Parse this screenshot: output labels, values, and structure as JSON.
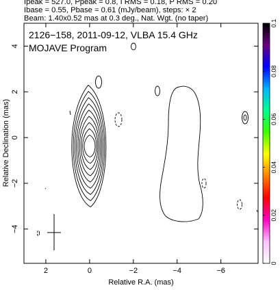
{
  "header": {
    "line1": "Ipeak = 527.0, Ppeak = 0.8, I RMS = 0.18, P RMS = 0.20",
    "line2": "Ibase = 0.55, Pbase = 0.61 (mJy/beam), steps: × 2",
    "line3": "Beam: 1.40x0.52 mas at 0.3 deg., Nat. Wgt. (no taper)"
  },
  "panel": {
    "title": "2126−158, 2011-09-12, VLBA 15.4 GHz",
    "program": "MOJAVE Program"
  },
  "chart_data": {
    "type": "contour",
    "xlabel": "Relative R.A. (mas)",
    "ylabel": "Relative Declination (mas)",
    "xlim": [
      3.0,
      -7.7
    ],
    "ylim": [
      -5.5,
      5.0
    ],
    "x_ticks": [
      2,
      0,
      -2,
      -4,
      -6
    ],
    "x_tick_labels": [
      "2",
      "0",
      "−2",
      "−4",
      "−6"
    ],
    "y_ticks": [
      4,
      2,
      0,
      -2,
      -4
    ],
    "y_tick_labels": [
      "4",
      "2",
      "0",
      "−2",
      "−4"
    ],
    "core": {
      "x": 0.0,
      "y": -0.4,
      "contour_levels": 9
    },
    "colorbar": {
      "range": [
        0,
        0.1
      ],
      "ticks": [
        0,
        0.02,
        0.04,
        0.06,
        0.08,
        0.1
      ],
      "tick_labels": [
        "0",
        "0.02",
        "0.04",
        "0.06",
        "0.08",
        "0.1"
      ],
      "colors_top_to_bottom": [
        "#000000",
        "#6a0080",
        "#0000ff",
        "#00b4ff",
        "#00ff90",
        "#40ff00",
        "#ffff00",
        "#ff8000",
        "#ff0000",
        "#ff00c0",
        "#ffc0ff",
        "#ffffff"
      ]
    },
    "beam": {
      "x": 1.6,
      "y": -4.4,
      "major_mas": 1.4,
      "minor_mas": 0.52,
      "pa_deg": 0.3
    }
  }
}
